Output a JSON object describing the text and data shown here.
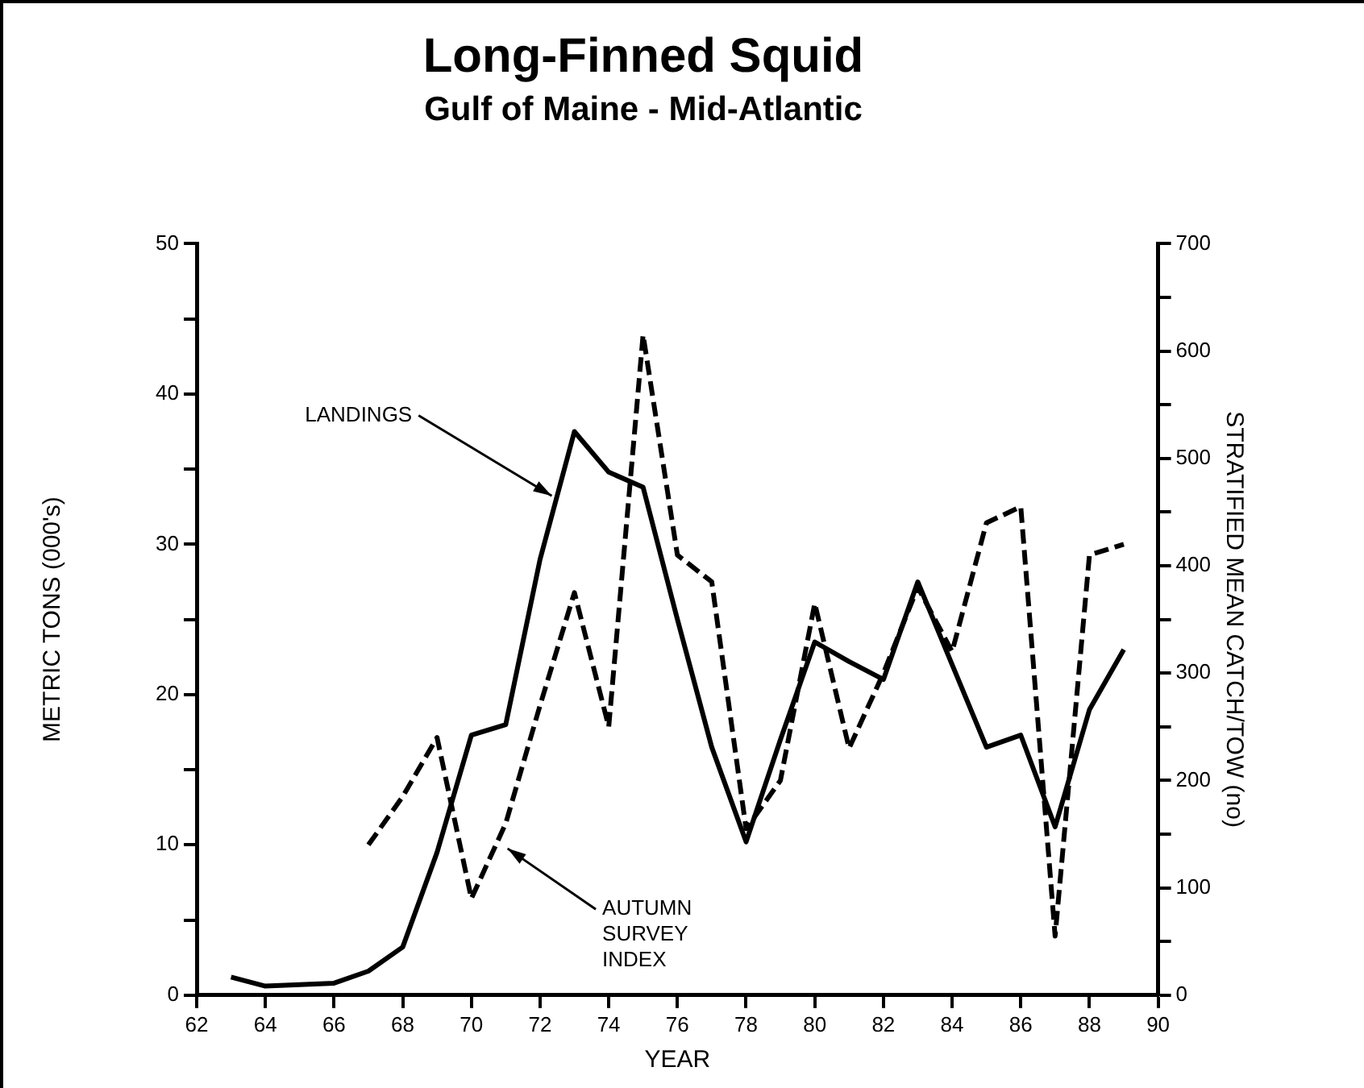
{
  "chart_data": {
    "type": "line",
    "title": "Long-Finned Squid",
    "subtitle": "Gulf of Maine - Mid-Atlantic",
    "xlabel": "YEAR",
    "ylabel": "METRIC TONS (000's)",
    "y2label": "STRATIFIED MEAN CATCH/TOW (no)",
    "xlim": [
      62,
      90
    ],
    "xticks": [
      62,
      64,
      66,
      68,
      70,
      72,
      74,
      76,
      78,
      80,
      82,
      84,
      86,
      88,
      90
    ],
    "ylim": [
      0,
      50
    ],
    "yticks": [
      0,
      {
        "value": 5,
        "label": null
      },
      10,
      {
        "value": 15,
        "label": null
      },
      20,
      {
        "value": 25,
        "label": null
      },
      30,
      {
        "value": 35,
        "label": null
      },
      40,
      {
        "value": 45,
        "label": null
      },
      50
    ],
    "y2lim": [
      0,
      700
    ],
    "y2ticks": [
      0,
      {
        "value": 50,
        "label": null
      },
      100,
      {
        "value": 150,
        "label": null
      },
      200,
      {
        "value": 250,
        "label": null
      },
      300,
      {
        "value": 350,
        "label": null
      },
      400,
      {
        "value": 450,
        "label": null
      },
      500,
      {
        "value": 550,
        "label": null
      },
      600,
      {
        "value": 650,
        "label": null
      },
      700
    ],
    "grid": false,
    "legend": false,
    "marker": "none",
    "series": [
      {
        "color": "#000000",
        "line_style": "solid",
        "x": [
          63,
          64,
          65,
          66,
          67,
          68,
          69,
          70,
          71,
          72,
          73,
          74,
          75,
          76,
          77,
          78,
          79,
          80,
          81,
          82,
          83,
          84,
          85,
          86,
          87,
          88,
          89
        ],
        "values": [
          1.2,
          0.6,
          0.7,
          0.8,
          1.6,
          3.2,
          9.5,
          17.3,
          18,
          29,
          37.5,
          34.8,
          33.8,
          25,
          16.5,
          10.2,
          17,
          23.5,
          22.2,
          21,
          27.5,
          22,
          16.5,
          17.3,
          11.2,
          19,
          23
        ]
      },
      {
        "color": "#000000",
        "line_style": "dashed",
        "axis": "y2",
        "x": [
          67,
          68,
          69,
          70,
          71,
          72,
          73,
          74,
          75,
          76,
          77,
          78,
          79,
          80,
          81,
          82,
          83,
          84,
          85,
          86,
          87,
          88,
          89
        ],
        "values": [
          140,
          185,
          240,
          90,
          160,
          270,
          375,
          250,
          615,
          410,
          385,
          155,
          200,
          365,
          230,
          300,
          380,
          320,
          440,
          455,
          55,
          410,
          420
        ]
      }
    ],
    "annotations": [
      {
        "text": "LANDINGS",
        "x": 72.5,
        "y": 33
      },
      {
        "text": "AUTUMN\nSURVEY\nINDEX",
        "x": 70.9,
        "y": 10
      }
    ]
  }
}
